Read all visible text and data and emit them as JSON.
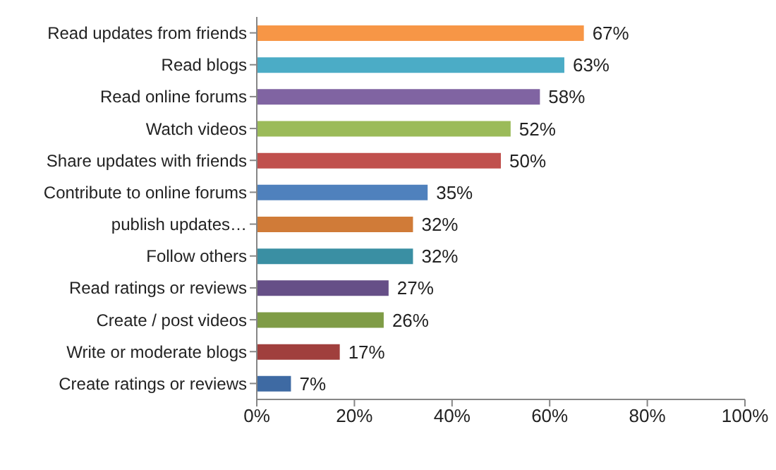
{
  "chart_data": {
    "type": "bar",
    "orientation": "horizontal",
    "categories": [
      "Read updates from friends",
      "Read blogs",
      "Read online forums",
      "Watch videos",
      "Share updates with friends",
      "Contribute to online forums",
      "publish updates…",
      "Follow others",
      "Read ratings or reviews",
      "Create / post videos",
      "Write or moderate blogs",
      "Create ratings or reviews"
    ],
    "values": [
      67,
      63,
      58,
      52,
      50,
      35,
      32,
      32,
      27,
      26,
      17,
      7
    ],
    "value_labels": [
      "67%",
      "63%",
      "58%",
      "52%",
      "50%",
      "35%",
      "32%",
      "32%",
      "27%",
      "26%",
      "17%",
      "7%"
    ],
    "colors": [
      "#f79646",
      "#4bacc6",
      "#8064a2",
      "#9bbb59",
      "#c0504d",
      "#4f81bd",
      "#d07b38",
      "#3a8fa3",
      "#664f87",
      "#7f9c46",
      "#a03f3d",
      "#3e6aa3"
    ],
    "xlim": [
      0,
      100
    ],
    "xticks": [
      {
        "value": 0,
        "label": "0%"
      },
      {
        "value": 20,
        "label": "20%"
      },
      {
        "value": 40,
        "label": "40%"
      },
      {
        "value": 60,
        "label": "60%"
      },
      {
        "value": 80,
        "label": "80%"
      },
      {
        "value": 100,
        "label": "100%"
      }
    ],
    "grid": false,
    "legend": false
  }
}
